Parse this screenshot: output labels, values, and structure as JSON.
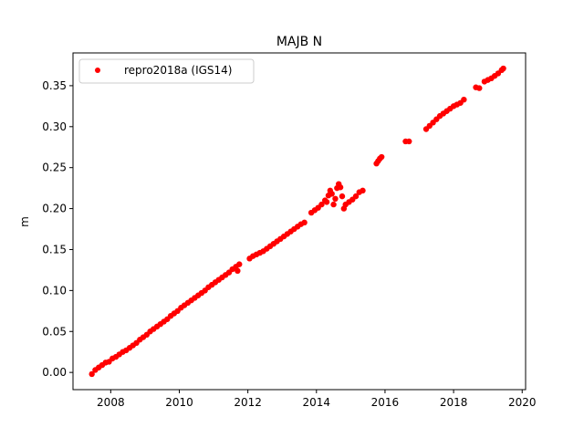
{
  "chart_data": {
    "type": "scatter",
    "title": "MAJB N",
    "xlabel": "",
    "ylabel": "m",
    "xlim": [
      2006.9,
      2020.1
    ],
    "ylim": [
      -0.021,
      0.39
    ],
    "xticks": [
      2008,
      2010,
      2012,
      2014,
      2016,
      2018,
      2020
    ],
    "yticks": [
      0.0,
      0.05,
      0.1,
      0.15,
      0.2,
      0.25,
      0.3,
      0.35
    ],
    "ytick_labels": [
      "0.00",
      "0.05",
      "0.10",
      "0.15",
      "0.20",
      "0.25",
      "0.30",
      "0.35"
    ],
    "grid": false,
    "legend": "top-left",
    "marker_color": "#ff0000",
    "series": [
      {
        "name": "repro2018a (IGS14)",
        "color": "#ff0000",
        "points": [
          [
            2007.45,
            -0.002
          ],
          [
            2007.55,
            0.003
          ],
          [
            2007.65,
            0.006
          ],
          [
            2007.75,
            0.009
          ],
          [
            2007.85,
            0.012
          ],
          [
            2007.95,
            0.013
          ],
          [
            2008.05,
            0.017
          ],
          [
            2008.15,
            0.019
          ],
          [
            2008.25,
            0.022
          ],
          [
            2008.35,
            0.025
          ],
          [
            2008.45,
            0.027
          ],
          [
            2008.55,
            0.03
          ],
          [
            2008.65,
            0.033
          ],
          [
            2008.75,
            0.036
          ],
          [
            2008.85,
            0.04
          ],
          [
            2008.95,
            0.043
          ],
          [
            2009.05,
            0.046
          ],
          [
            2009.15,
            0.05
          ],
          [
            2009.25,
            0.053
          ],
          [
            2009.35,
            0.056
          ],
          [
            2009.45,
            0.059
          ],
          [
            2009.55,
            0.062
          ],
          [
            2009.65,
            0.065
          ],
          [
            2009.75,
            0.069
          ],
          [
            2009.85,
            0.072
          ],
          [
            2009.95,
            0.075
          ],
          [
            2010.05,
            0.079
          ],
          [
            2010.15,
            0.082
          ],
          [
            2010.25,
            0.085
          ],
          [
            2010.35,
            0.088
          ],
          [
            2010.45,
            0.091
          ],
          [
            2010.55,
            0.094
          ],
          [
            2010.65,
            0.097
          ],
          [
            2010.75,
            0.1
          ],
          [
            2010.85,
            0.104
          ],
          [
            2010.95,
            0.107
          ],
          [
            2011.05,
            0.11
          ],
          [
            2011.15,
            0.113
          ],
          [
            2011.25,
            0.116
          ],
          [
            2011.35,
            0.119
          ],
          [
            2011.45,
            0.122
          ],
          [
            2011.55,
            0.126
          ],
          [
            2011.65,
            0.129
          ],
          [
            2011.75,
            0.132
          ],
          [
            2011.7,
            0.124
          ],
          [
            2012.05,
            0.139
          ],
          [
            2012.15,
            0.142
          ],
          [
            2012.25,
            0.144
          ],
          [
            2012.35,
            0.146
          ],
          [
            2012.45,
            0.148
          ],
          [
            2012.55,
            0.151
          ],
          [
            2012.65,
            0.154
          ],
          [
            2012.75,
            0.157
          ],
          [
            2012.85,
            0.16
          ],
          [
            2012.95,
            0.163
          ],
          [
            2013.05,
            0.166
          ],
          [
            2013.15,
            0.169
          ],
          [
            2013.25,
            0.172
          ],
          [
            2013.35,
            0.175
          ],
          [
            2013.45,
            0.178
          ],
          [
            2013.55,
            0.181
          ],
          [
            2013.65,
            0.183
          ],
          [
            2013.85,
            0.195
          ],
          [
            2013.95,
            0.198
          ],
          [
            2014.05,
            0.201
          ],
          [
            2014.15,
            0.205
          ],
          [
            2014.25,
            0.21
          ],
          [
            2014.3,
            0.208
          ],
          [
            2014.35,
            0.216
          ],
          [
            2014.4,
            0.222
          ],
          [
            2014.45,
            0.218
          ],
          [
            2014.5,
            0.205
          ],
          [
            2014.55,
            0.212
          ],
          [
            2014.6,
            0.225
          ],
          [
            2014.65,
            0.23
          ],
          [
            2014.7,
            0.226
          ],
          [
            2014.75,
            0.215
          ],
          [
            2014.8,
            0.2
          ],
          [
            2014.85,
            0.205
          ],
          [
            2014.95,
            0.208
          ],
          [
            2015.05,
            0.211
          ],
          [
            2015.15,
            0.215
          ],
          [
            2015.25,
            0.22
          ],
          [
            2015.35,
            0.222
          ],
          [
            2015.75,
            0.255
          ],
          [
            2015.8,
            0.258
          ],
          [
            2015.85,
            0.261
          ],
          [
            2015.9,
            0.263
          ],
          [
            2016.6,
            0.282
          ],
          [
            2016.7,
            0.282
          ],
          [
            2017.2,
            0.297
          ],
          [
            2017.3,
            0.301
          ],
          [
            2017.4,
            0.305
          ],
          [
            2017.5,
            0.309
          ],
          [
            2017.6,
            0.313
          ],
          [
            2017.7,
            0.316
          ],
          [
            2017.8,
            0.319
          ],
          [
            2017.9,
            0.322
          ],
          [
            2018.0,
            0.325
          ],
          [
            2018.1,
            0.327
          ],
          [
            2018.2,
            0.329
          ],
          [
            2018.3,
            0.333
          ],
          [
            2018.65,
            0.348
          ],
          [
            2018.75,
            0.347
          ],
          [
            2018.9,
            0.355
          ],
          [
            2019.0,
            0.357
          ],
          [
            2019.1,
            0.359
          ],
          [
            2019.2,
            0.362
          ],
          [
            2019.3,
            0.365
          ],
          [
            2019.4,
            0.369
          ],
          [
            2019.45,
            0.371
          ]
        ]
      }
    ]
  }
}
